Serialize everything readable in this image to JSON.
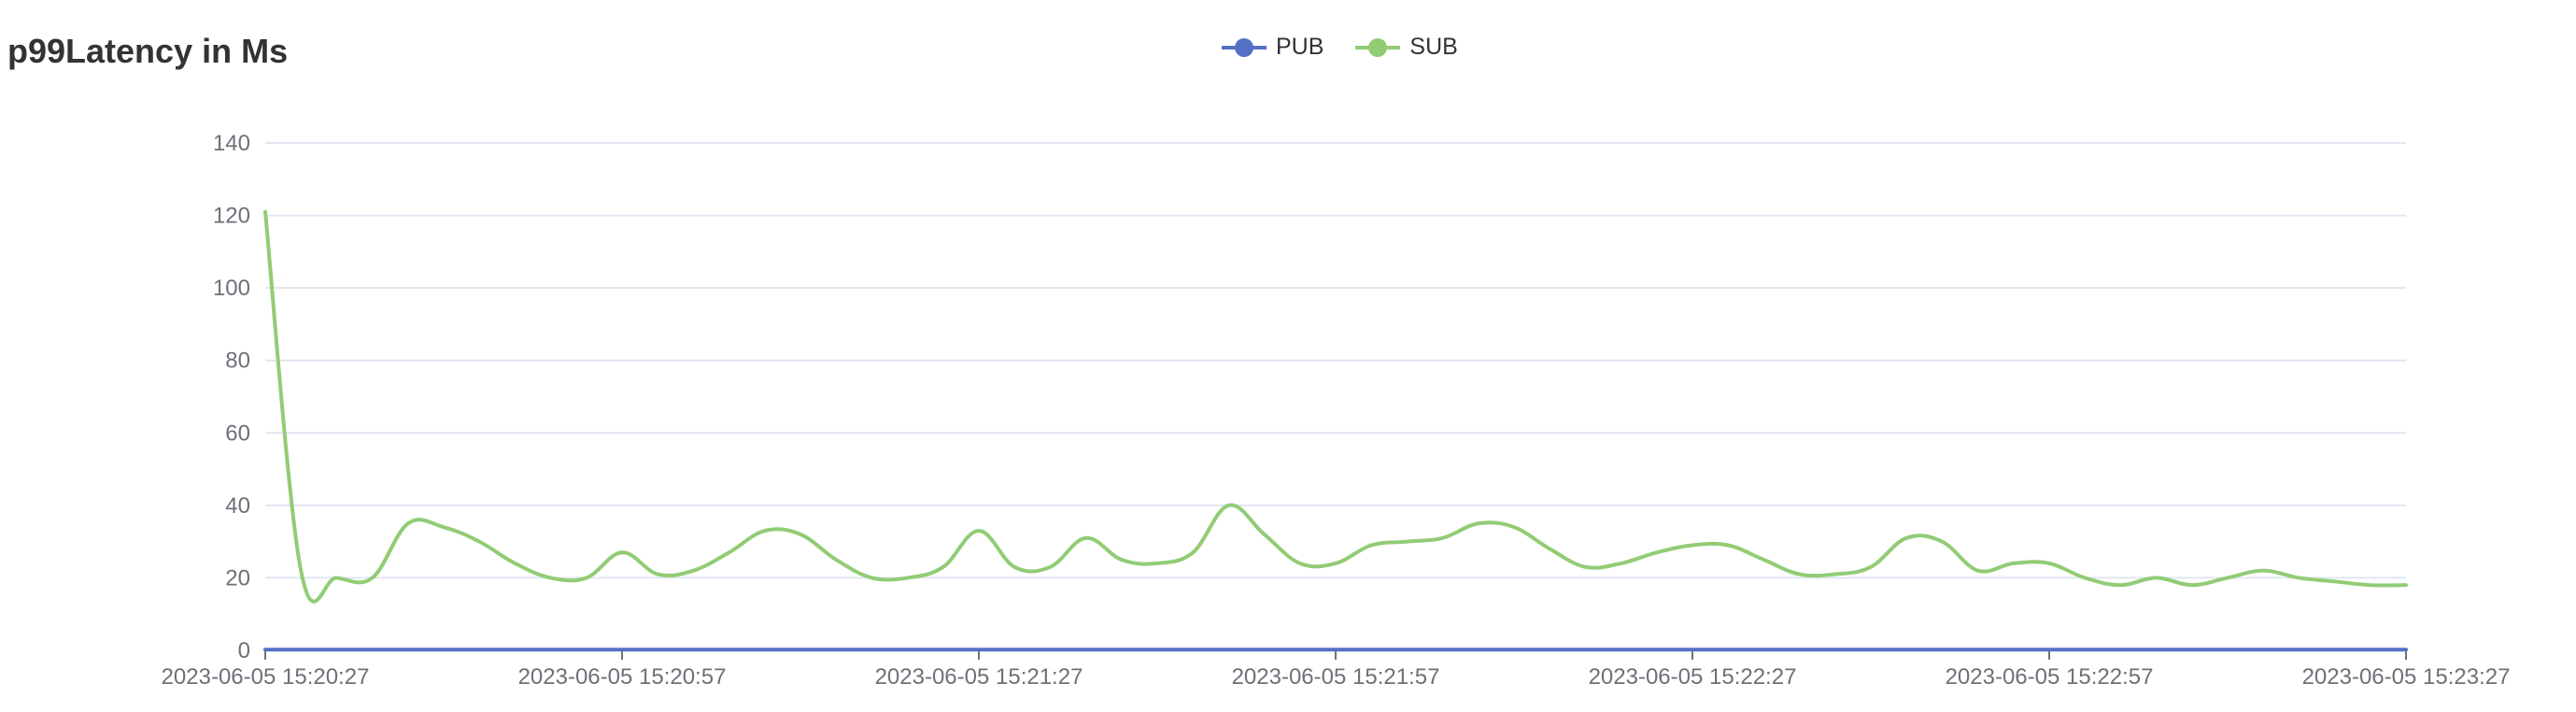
{
  "chart_data": {
    "type": "line",
    "title": "p99Latency in Ms",
    "xlabel": "",
    "ylabel": "",
    "ylim": [
      0,
      140
    ],
    "y_ticks": [
      "0",
      "20",
      "40",
      "60",
      "80",
      "100",
      "120",
      "140"
    ],
    "x_tick_labels": [
      "2023-06-05 15:20:27",
      "2023-06-05 15:20:57",
      "2023-06-05 15:21:27",
      "2023-06-05 15:21:57",
      "2023-06-05 15:22:27",
      "2023-06-05 15:22:57",
      "2023-06-05 15:23:27"
    ],
    "x": [
      "15:20:27",
      "15:20:30",
      "15:20:33",
      "15:20:36",
      "15:20:39",
      "15:20:42",
      "15:20:45",
      "15:20:48",
      "15:20:51",
      "15:20:54",
      "15:20:57",
      "15:21:00",
      "15:21:03",
      "15:21:06",
      "15:21:09",
      "15:21:12",
      "15:21:15",
      "15:21:18",
      "15:21:21",
      "15:21:24",
      "15:21:27",
      "15:21:30",
      "15:21:33",
      "15:21:36",
      "15:21:39",
      "15:21:42",
      "15:21:45",
      "15:21:48",
      "15:21:51",
      "15:21:54",
      "15:21:57",
      "15:22:00",
      "15:22:03",
      "15:22:06",
      "15:22:09",
      "15:22:12",
      "15:22:15",
      "15:22:18",
      "15:22:21",
      "15:22:24",
      "15:22:27",
      "15:22:30",
      "15:22:33",
      "15:22:36",
      "15:22:39",
      "15:22:42",
      "15:22:45",
      "15:22:48",
      "15:22:51",
      "15:22:54",
      "15:22:57",
      "15:23:00",
      "15:23:03",
      "15:23:06",
      "15:23:09",
      "15:23:12",
      "15:23:15",
      "15:23:18",
      "15:23:21",
      "15:23:24",
      "15:23:27"
    ],
    "series": [
      {
        "name": "PUB",
        "color": "#5470c6",
        "values": [
          0.2,
          0.2,
          0.2,
          0.2,
          0.2,
          0.2,
          0.2,
          0.2,
          0.2,
          0.2,
          0.2,
          0.2,
          0.2,
          0.2,
          0.2,
          0.2,
          0.2,
          0.2,
          0.2,
          0.2,
          0.2,
          0.2,
          0.2,
          0.2,
          0.2,
          0.2,
          0.2,
          0.2,
          0.2,
          0.2,
          0.2,
          0.2,
          0.2,
          0.2,
          0.2,
          0.2,
          0.2,
          0.2,
          0.2,
          0.2,
          0.2,
          0.2,
          0.2,
          0.2,
          0.2,
          0.2,
          0.2,
          0.2,
          0.2,
          0.2,
          0.2,
          0.2,
          0.2,
          0.2,
          0.2,
          0.2,
          0.2,
          0.2,
          0.2,
          0.2,
          0.2
        ]
      },
      {
        "name": "SUB",
        "color": "#91cc75",
        "values": [
          121,
          22,
          20,
          20,
          35,
          34,
          30,
          24,
          20,
          20,
          27,
          21,
          22,
          27,
          33,
          32,
          25,
          20,
          20,
          23,
          33,
          23,
          23,
          31,
          25,
          24,
          27,
          40,
          32,
          24,
          24,
          29,
          30,
          31,
          35,
          34,
          28,
          23,
          24,
          27,
          29,
          29,
          25,
          21,
          21,
          23,
          31,
          30,
          22,
          24,
          24,
          20,
          18,
          20,
          18,
          20,
          22,
          20,
          19,
          18,
          18
        ]
      }
    ],
    "grid": true,
    "legend_position": "top-center"
  }
}
